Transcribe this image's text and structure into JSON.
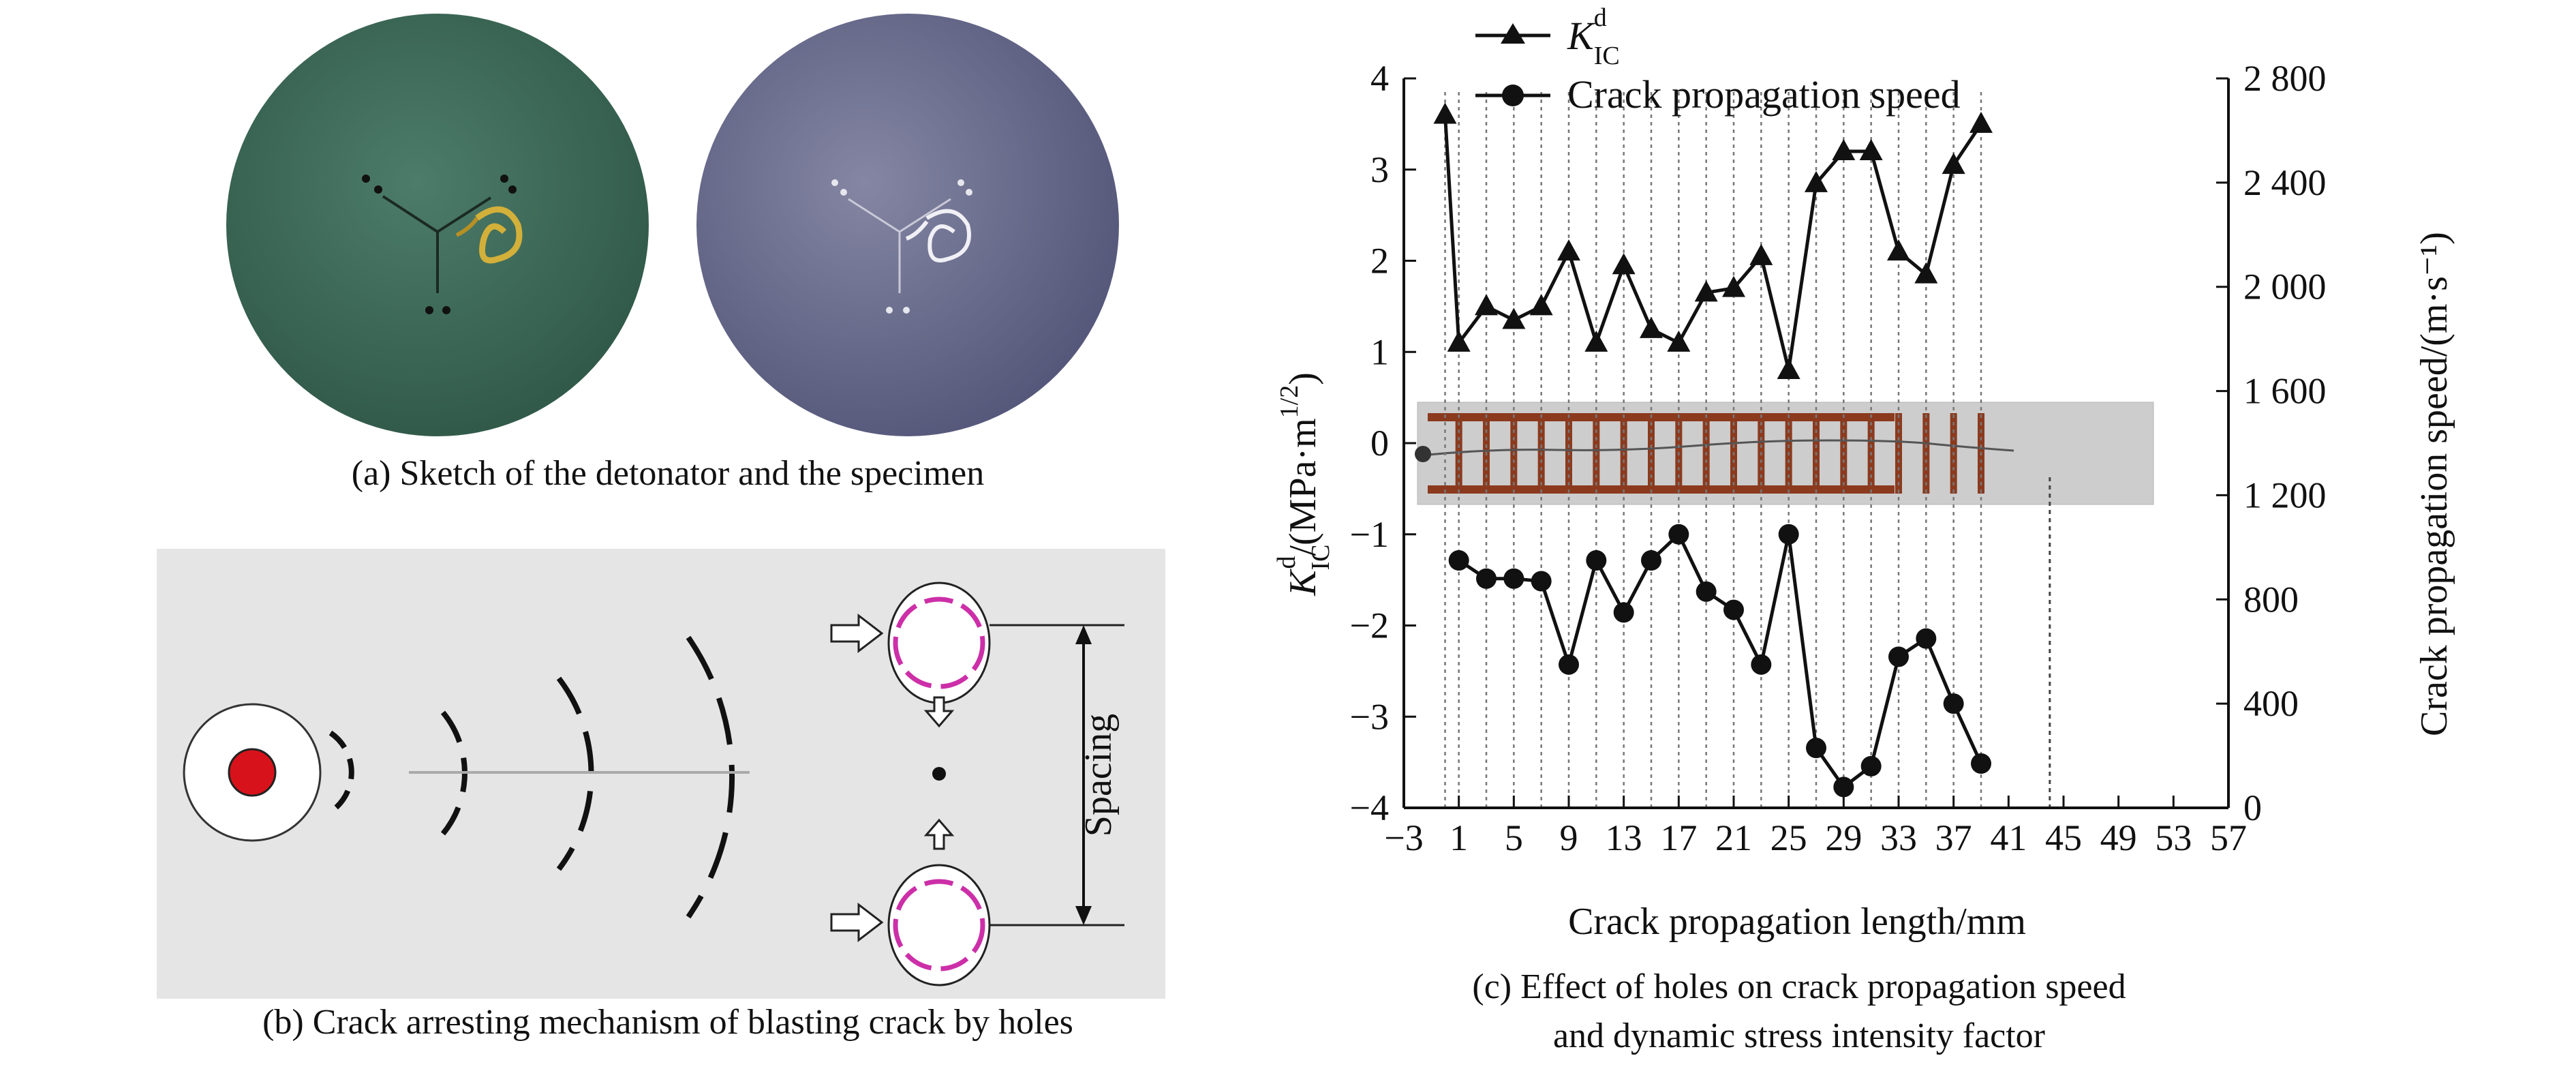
{
  "panel_a": {
    "caption": "(a) Sketch of the detonator and the specimen",
    "colors": {
      "left_disk": "#3f6a5a",
      "right_disk": "#6c6e8e",
      "wire": "#c8a22e"
    }
  },
  "panel_b": {
    "caption": "(b) Crack arresting mechanism of blasting crack by holes",
    "spacing_label": "Spacing",
    "colors": {
      "background": "#e6e6e6",
      "charge": "#d8121a",
      "hole_boundary": "#cc2fa8"
    }
  },
  "panel_c": {
    "caption_line1": "(c) Effect of holes on crack propagation speed",
    "caption_line2": "and dynamic stress intensity factor"
  },
  "chart_data": {
    "type": "line",
    "xlabel": "Crack propagation length/mm",
    "ylabel_left": "K_IC^d/(MPa·m^1/2)",
    "ylabel_right": "Crack propagation speed/(m·s⁻¹)",
    "xlim": [
      -3,
      57
    ],
    "ylim_left": [
      -4,
      4
    ],
    "ylim_right": [
      0,
      2800
    ],
    "x_ticks": [
      "−3",
      "1",
      "5",
      "9",
      "13",
      "17",
      "21",
      "25",
      "29",
      "33",
      "37",
      "41",
      "45",
      "49",
      "53",
      "57"
    ],
    "y_ticks_left": [
      "−4",
      "−3",
      "−2",
      "−1",
      "0",
      "1",
      "2",
      "3",
      "4"
    ],
    "y_ticks_right": [
      "0",
      "400",
      "800",
      "1 200",
      "1 600",
      "2 000",
      "2 400",
      "2 800"
    ],
    "legend": [
      "K_IC^d",
      "Crack propagation speed"
    ],
    "legend_position": "top-left",
    "series": [
      {
        "name": "K_IC^d",
        "marker": "triangle",
        "axis": "left",
        "x": [
          0,
          1,
          3,
          5,
          7,
          9,
          11,
          13,
          15,
          17,
          19,
          21,
          23,
          25,
          27,
          29,
          31,
          33,
          35,
          37,
          39
        ],
        "y": [
          3.6,
          1.1,
          1.5,
          1.35,
          1.5,
          2.1,
          1.1,
          1.95,
          1.25,
          1.1,
          1.65,
          1.7,
          2.05,
          0.8,
          2.85,
          3.2,
          3.2,
          2.1,
          1.85,
          3.05,
          3.5
        ]
      },
      {
        "name": "Crack propagation speed",
        "marker": "circle",
        "axis": "right",
        "x": [
          1,
          3,
          5,
          7,
          9,
          11,
          13,
          15,
          17,
          19,
          21,
          23,
          25,
          27,
          29,
          31,
          33,
          35,
          37,
          39
        ],
        "y": [
          950,
          880,
          880,
          870,
          550,
          950,
          750,
          950,
          1050,
          830,
          760,
          550,
          1050,
          230,
          80,
          160,
          580,
          650,
          400,
          170
        ]
      }
    ],
    "vertical_guides_x": [
      0,
      1,
      3,
      5,
      7,
      9,
      11,
      13,
      15,
      17,
      19,
      21,
      23,
      25,
      27,
      29,
      31,
      33,
      35,
      37,
      39
    ],
    "end_marker_x": 44
  }
}
